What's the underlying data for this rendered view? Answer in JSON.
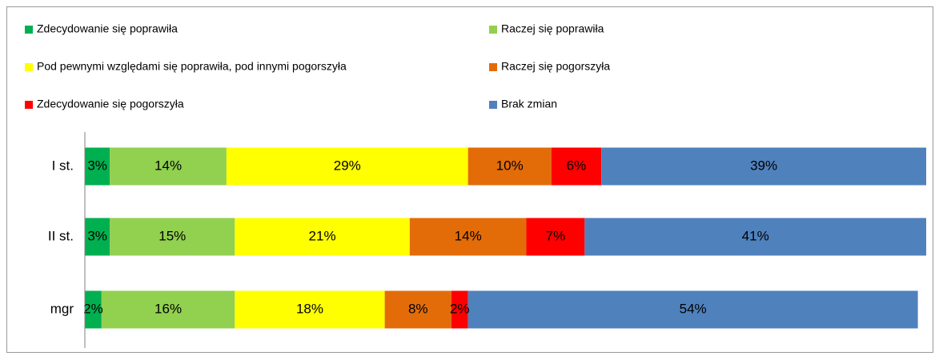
{
  "chart_data": {
    "type": "stacked-barh",
    "categories": [
      "I st.",
      "II st.",
      "mgr"
    ],
    "xlim": [
      0,
      101
    ],
    "series": [
      {
        "name": "Zdecydowanie się poprawiła",
        "color": "#00b050",
        "values": [
          3,
          3,
          2
        ],
        "value_labels": [
          "3%",
          "3%",
          "2%"
        ]
      },
      {
        "name": "Raczej się poprawiła",
        "color": "#92d050",
        "values": [
          14,
          15,
          16
        ],
        "value_labels": [
          "14%",
          "15%",
          "16%"
        ]
      },
      {
        "name": "Pod pewnymi względami się poprawiła, pod innymi pogorszyła",
        "color": "#ffff00",
        "values": [
          29,
          21,
          18
        ],
        "value_labels": [
          "29%",
          "21%",
          "18%"
        ]
      },
      {
        "name": "Raczej się pogorszyła",
        "color": "#e36c09",
        "values": [
          10,
          14,
          8
        ],
        "value_labels": [
          "10%",
          "14%",
          "8%"
        ]
      },
      {
        "name": "Zdecydowanie się pogorszyła",
        "color": "#ff0000",
        "values": [
          6,
          7,
          2
        ],
        "value_labels": [
          "6%",
          "7%",
          "2%"
        ]
      },
      {
        "name": "Brak zmian",
        "color": "#4f81bd",
        "values": [
          39,
          41,
          54
        ],
        "value_labels": [
          "39%",
          "41%",
          "54%"
        ]
      }
    ]
  }
}
